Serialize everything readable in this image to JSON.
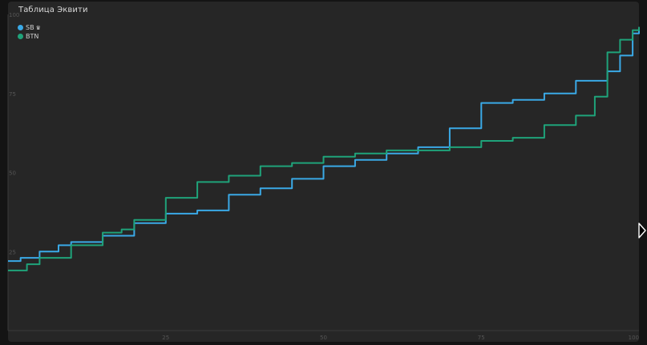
{
  "window": {
    "title": "Таблица Эквити"
  },
  "colors": {
    "sb": "#3aa9e6",
    "btn": "#1fa37a",
    "background": "#262626",
    "grid": "#333333"
  },
  "chart_data": {
    "type": "line",
    "title": "Таблица Эквити",
    "xlabel": "",
    "ylabel": "",
    "xlim": [
      0,
      100
    ],
    "ylim": [
      0,
      100
    ],
    "x_ticks": [
      "25",
      "50",
      "75",
      "100"
    ],
    "y_ticks": [
      "25",
      "50",
      "75",
      "100"
    ],
    "grid": false,
    "legend_position": "top-left",
    "series": [
      {
        "name": "SB",
        "badge_icon": "crown-icon",
        "color": "#3aa9e6",
        "x": [
          0,
          2,
          5,
          8,
          10,
          15,
          20,
          25,
          30,
          35,
          40,
          45,
          50,
          55,
          60,
          65,
          70,
          75,
          80,
          85,
          90,
          95,
          97,
          99,
          100
        ],
        "y": [
          22,
          23,
          25,
          27,
          28,
          30,
          34,
          37,
          38,
          43,
          45,
          48,
          52,
          54,
          56,
          58,
          64,
          72,
          73,
          75,
          79,
          82,
          87,
          94,
          96
        ]
      },
      {
        "name": "BTN",
        "color": "#1fa37a",
        "x": [
          0,
          3,
          5,
          10,
          15,
          18,
          20,
          25,
          30,
          35,
          40,
          45,
          50,
          55,
          60,
          65,
          70,
          75,
          80,
          85,
          90,
          93,
          95,
          97,
          99,
          100
        ],
        "y": [
          19,
          21,
          23,
          27,
          31,
          32,
          35,
          42,
          47,
          49,
          52,
          53,
          55,
          56,
          57,
          57,
          58,
          60,
          61,
          65,
          68,
          74,
          88,
          92,
          95,
          96
        ]
      }
    ]
  }
}
